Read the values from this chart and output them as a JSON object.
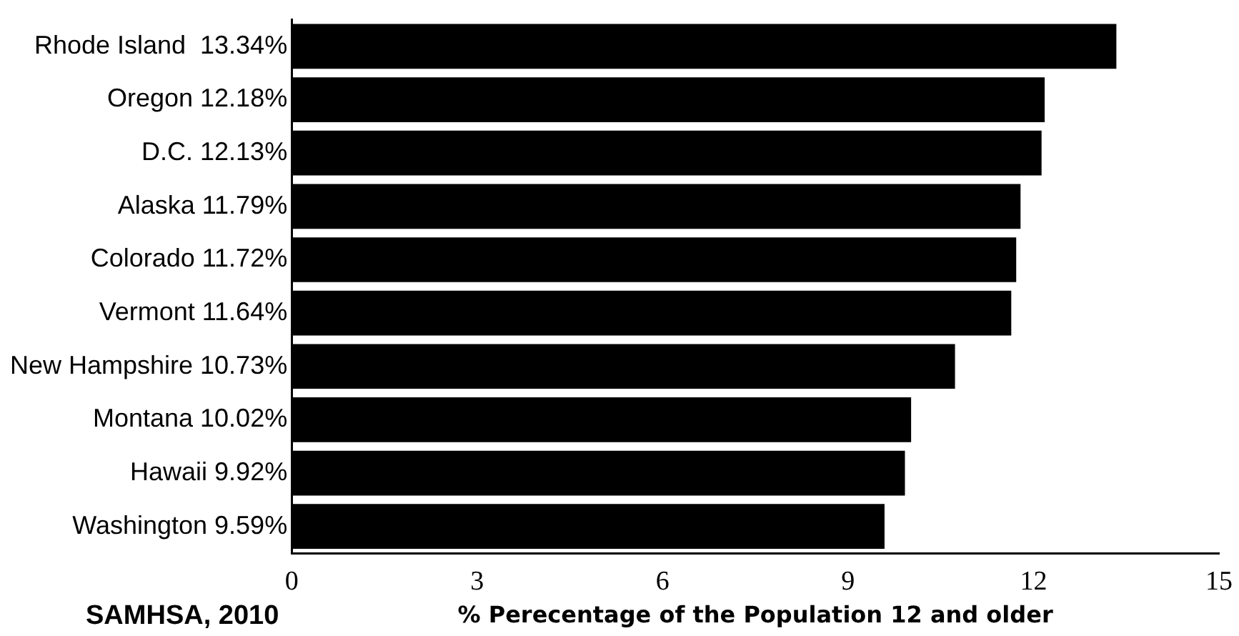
{
  "chart_data": {
    "type": "bar",
    "orientation": "horizontal",
    "categories": [
      "Rhode Island  13.34%",
      "Oregon 12.18%",
      "D.C. 12.13%",
      "Alaska 11.79%",
      "Colorado 11.72%",
      "Vermont 11.64%",
      "New Hampshire 10.73%",
      "Montana 10.02%",
      "Hawaii 9.92%",
      "Washington 9.59%"
    ],
    "values": [
      13.34,
      12.18,
      12.13,
      11.79,
      11.72,
      11.64,
      10.73,
      10.02,
      9.92,
      9.59
    ],
    "color": "#000000",
    "xlim": [
      0,
      15
    ],
    "xticks": [
      0,
      3,
      6,
      9,
      12,
      15
    ],
    "xlabel": "% Perecentage of the Population 12 and older",
    "annotations": [
      "SAMHSA, 2010"
    ],
    "grid": false,
    "legend": false
  }
}
